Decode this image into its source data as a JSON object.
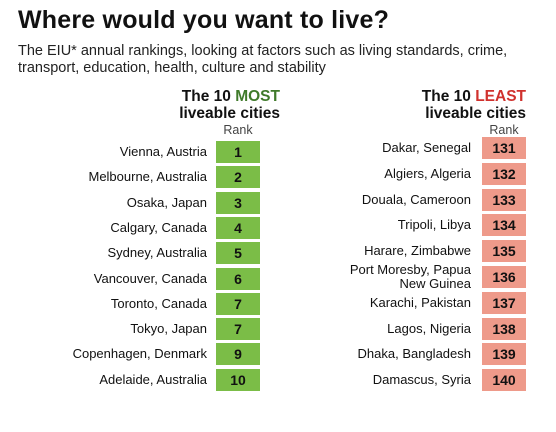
{
  "title": "Where would you want to live?",
  "subtitle": "The EIU* annual rankings, looking at factors such as living standards, crime, transport, education, health, culture and stability",
  "most": {
    "heading_prefix": "The 10 ",
    "heading_accent": "MOST",
    "heading_suffix": "liveable cities",
    "rank_label": "Rank",
    "accent_color": "#3f7a2a",
    "badge_color": "#7bbd47",
    "items": [
      {
        "city": "Vienna, Austria",
        "rank": "1"
      },
      {
        "city": "Melbourne, Australia",
        "rank": "2"
      },
      {
        "city": "Osaka, Japan",
        "rank": "3"
      },
      {
        "city": "Calgary, Canada",
        "rank": "4"
      },
      {
        "city": "Sydney, Australia",
        "rank": "5"
      },
      {
        "city": "Vancouver, Canada",
        "rank": "6"
      },
      {
        "city": "Toronto, Canada",
        "rank": "7"
      },
      {
        "city": "Tokyo, Japan",
        "rank": "7"
      },
      {
        "city": "Copenhagen, Denmark",
        "rank": "9"
      },
      {
        "city": "Adelaide, Australia",
        "rank": "10"
      }
    ]
  },
  "least": {
    "heading_prefix": "The 10 ",
    "heading_accent": "LEAST",
    "heading_suffix": "liveable cities",
    "rank_label": "Rank",
    "accent_color": "#d0312d",
    "badge_color": "#ee9a8a",
    "items": [
      {
        "city": "Dakar, Senegal",
        "rank": "131"
      },
      {
        "city": "Algiers, Algeria",
        "rank": "132"
      },
      {
        "city": "Douala, Cameroon",
        "rank": "133"
      },
      {
        "city": "Tripoli, Libya",
        "rank": "134"
      },
      {
        "city": "Harare, Zimbabwe",
        "rank": "135"
      },
      {
        "city": "Port Moresby, Papua New Guinea",
        "rank": "136"
      },
      {
        "city": "Karachi, Pakistan",
        "rank": "137"
      },
      {
        "city": "Lagos, Nigeria",
        "rank": "138"
      },
      {
        "city": "Dhaka, Bangladesh",
        "rank": "139"
      },
      {
        "city": "Damascus, Syria",
        "rank": "140"
      }
    ]
  }
}
